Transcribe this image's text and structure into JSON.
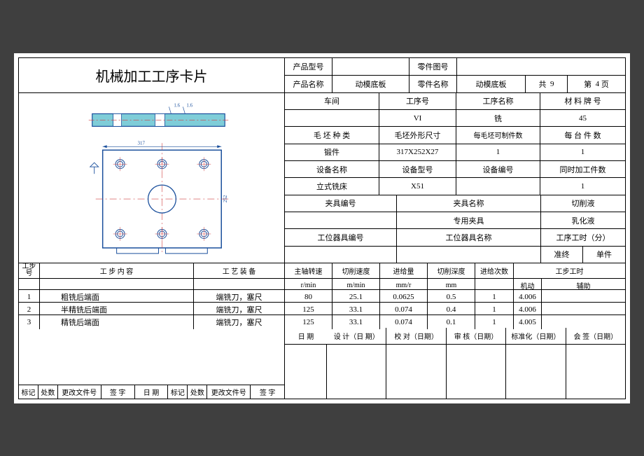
{
  "title": "机械加工工序卡片",
  "header": {
    "product_model_label": "产品型号",
    "product_model": "",
    "part_drawing_no_label": "零件图号",
    "part_drawing_no": "",
    "product_name_label": "产品名称",
    "product_name": "动模底板",
    "part_name_label": "零件名称",
    "part_name": "动模底板",
    "total_pages_prefix": "共",
    "total_pages": "9",
    "page_prefix": "第",
    "page_no": "4",
    "page_suffix": "页"
  },
  "info": {
    "workshop_label": "车间",
    "workshop": "",
    "process_no_label": "工序号",
    "process_no": "VI",
    "process_name_label": "工序名称",
    "process_name": "铣",
    "material_no_label": "材 料 牌 号",
    "material_no": "45",
    "blank_type_label": "毛 坯 种 类",
    "blank_type": "锻件",
    "blank_size_label": "毛坯外形尺寸",
    "blank_size": "317X252X27",
    "parts_per_blank_label": "每毛坯可制件数",
    "parts_per_blank": "1",
    "parts_per_unit_label": "每 台 件 数",
    "parts_per_unit": "1",
    "equip_name_label": "设备名称",
    "equip_name": "立式铣床",
    "equip_model_label": "设备型号",
    "equip_model": "X51",
    "equip_no_label": "设备编号",
    "equip_no": "",
    "simult_parts_label": "同时加工件数",
    "simult_parts": "1",
    "fixture_no_label": "夹具编号",
    "fixture_no": "",
    "fixture_name_label": "夹具名称",
    "fixture_name": "专用夹具",
    "coolant_label": "切削液",
    "coolant": "乳化液",
    "tool_no_label": "工位器具编号",
    "tool_no": "",
    "tool_name_label": "工位器具名称",
    "tool_name": "",
    "time_label": "工序工时（分）",
    "prep_label": "准终",
    "unit_label": "单件"
  },
  "steps_header": {
    "step_no": "工步号",
    "step_content": "工 步 内 容",
    "equipment": "工 艺 装 备",
    "spindle": "主轴转速",
    "spindle_unit": "r/min",
    "cut_speed": "切削速度",
    "cut_speed_unit": "m/min",
    "feed": "进给量",
    "feed_unit": "mm/r",
    "cut_depth": "切削深度",
    "cut_depth_unit": "mm",
    "feed_count": "进给次数",
    "step_time": "工步工时",
    "machine": "机动",
    "aux": "辅助"
  },
  "steps": [
    {
      "no": "1",
      "content": "粗铣后端面",
      "equip": "端铣刀，塞尺",
      "spindle": "80",
      "speed": "25.1",
      "feed": "0.0625",
      "depth": "0.5",
      "count": "1",
      "machine": "4.006",
      "aux": ""
    },
    {
      "no": "2",
      "content": "半精铣后端面",
      "equip": "端铣刀，塞尺",
      "spindle": "125",
      "speed": "33.1",
      "feed": "0.074",
      "depth": "0.4",
      "count": "1",
      "machine": "4.006",
      "aux": ""
    },
    {
      "no": "3",
      "content": "精铣后端面",
      "equip": "端铣刀，塞尺",
      "spindle": "125",
      "speed": "33.1",
      "feed": "0.074",
      "depth": "0.1",
      "count": "1",
      "machine": "4.005",
      "aux": ""
    }
  ],
  "footer": {
    "design": "设 计（日 期）",
    "check": "校 对（日期）",
    "audit": "审 核（日期）",
    "standard": "标准化（日期）",
    "sign": "会 签（日期）",
    "mark": "标记",
    "count": "处数",
    "change_doc": "更改文件号",
    "sig": "签    字",
    "date": "日    期"
  },
  "drawing": {
    "rect_color": "#7fcdd8",
    "outline": "#1a4f9c",
    "dim_color": "#1a4f9c",
    "center_color": "#d04040"
  }
}
